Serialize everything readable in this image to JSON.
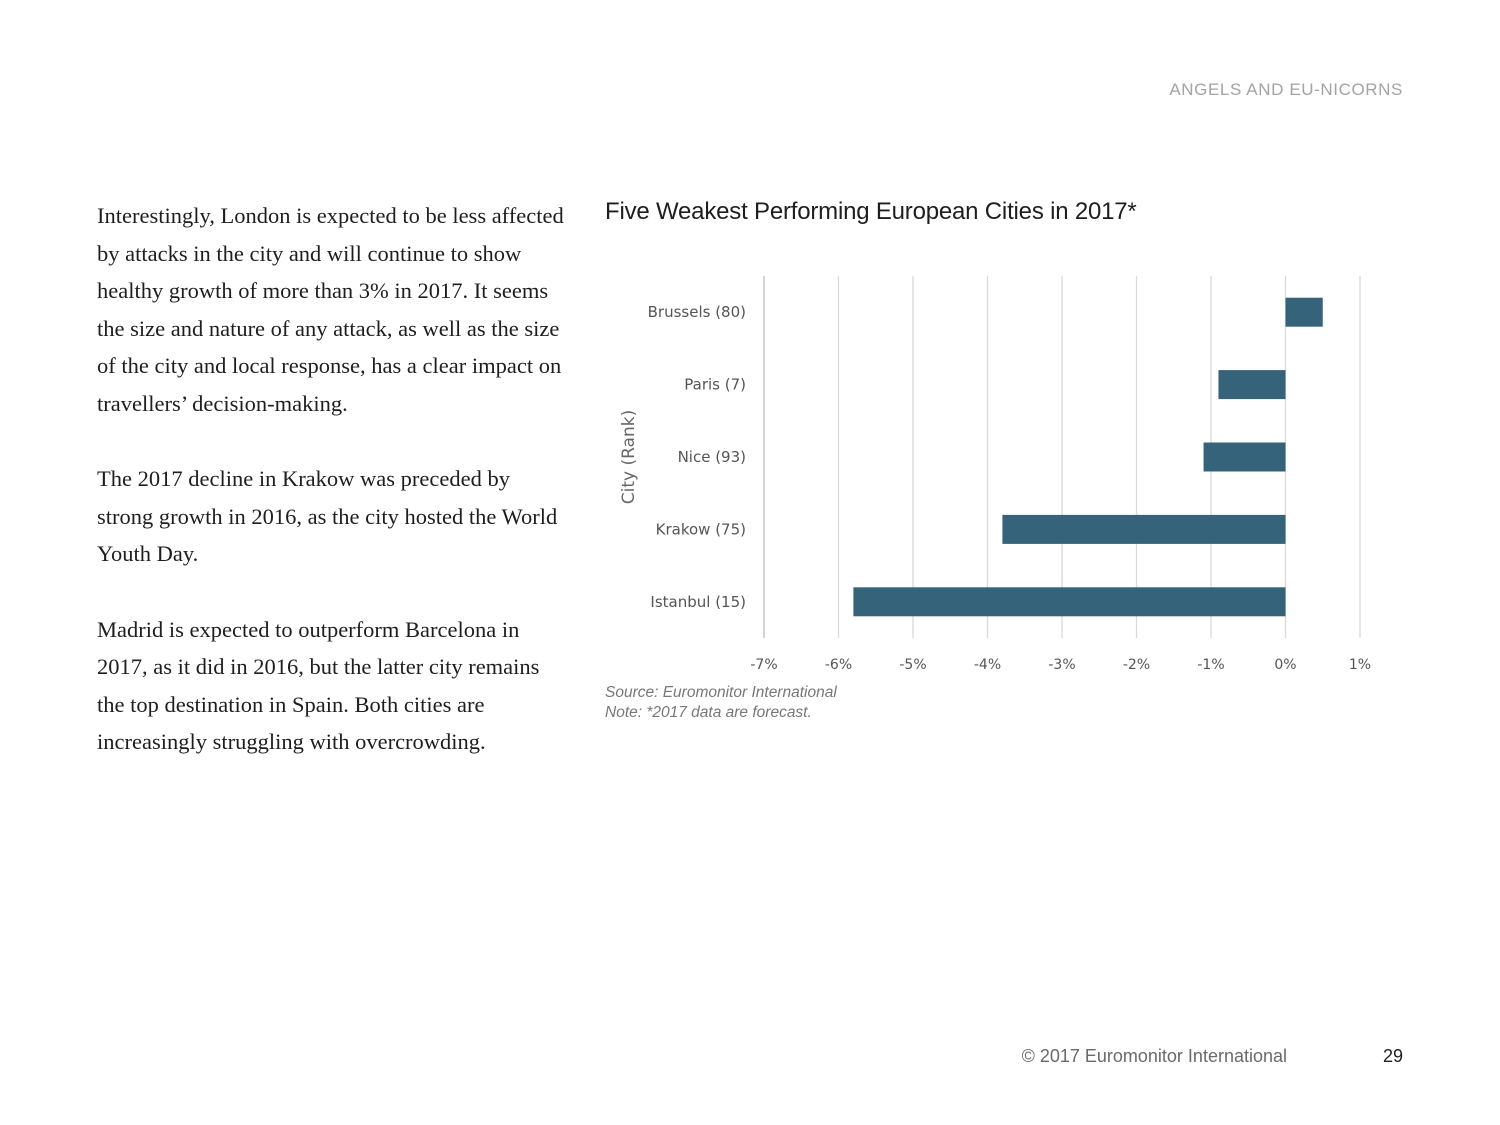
{
  "header": {
    "section_title": "ANGELS AND EU-NICORNS"
  },
  "body": {
    "paragraphs": [
      "Interestingly, London is expected to be less affected by attacks in the city and will continue to show healthy growth of more than 3% in 2017. It seems the size and nature of any attack, as well as the size of the city and local response, has a clear impact on travellers’ decision-making.",
      "The 2017 decline in Krakow was preceded by strong growth in 2016, as the city hosted the World Youth Day.",
      "Madrid is expected to outperform Barcelona in 2017, as it did in 2016, but the latter city remains the top destination in Spain. Both cities are increasingly struggling with overcrowding."
    ]
  },
  "chart_data": {
    "type": "bar",
    "orientation": "horizontal",
    "title": "Five Weakest Performing European Cities in 2017*",
    "ylabel": "City (Rank)",
    "xlabel": "",
    "categories": [
      "Brussels (80)",
      "Paris (7)",
      "Nice (93)",
      "Krakow (75)",
      "Istanbul (15)"
    ],
    "values": [
      0.5,
      -0.9,
      -1.1,
      -3.8,
      -5.8
    ],
    "xlim": [
      -7,
      1
    ],
    "xticks": [
      "-7%",
      "-6%",
      "-5%",
      "-4%",
      "-3%",
      "-2%",
      "-1%",
      "0%",
      "1%"
    ],
    "grid": true,
    "bar_color": "#34637a"
  },
  "notes": {
    "source": "Source: Euromonitor International",
    "note": "Note: *2017 data are forecast."
  },
  "footer": {
    "copyright": "© 2017 Euromonitor International",
    "page_number": "29"
  }
}
